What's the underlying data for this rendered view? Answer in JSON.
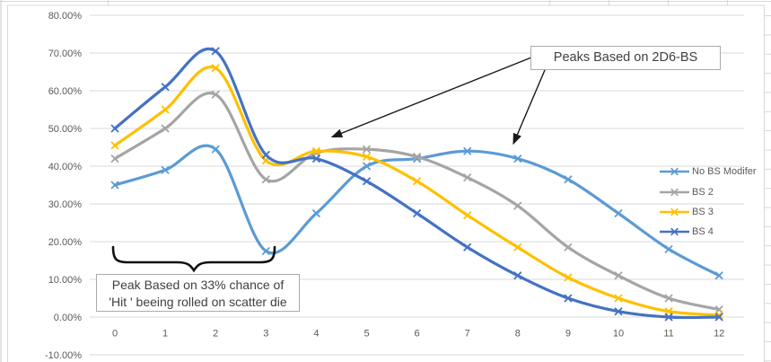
{
  "chart_data": {
    "type": "line",
    "title": "",
    "xlabel": "",
    "ylabel": "",
    "smooth": true,
    "marker": "x",
    "grid": "horizontal",
    "legend_position": "right",
    "ylim": [
      -10,
      80
    ],
    "y_ticks": [
      80,
      70,
      60,
      50,
      40,
      30,
      20,
      10,
      0,
      -10
    ],
    "y_tick_labels": [
      "80.00%",
      "70.00%",
      "60.00%",
      "50.00%",
      "40.00%",
      "30.00%",
      "20.00%",
      "10.00%",
      "0.00%",
      "-10.00%"
    ],
    "categories": [
      0,
      1,
      2,
      3,
      4,
      5,
      6,
      7,
      8,
      9,
      10,
      11,
      12
    ],
    "x_tick_labels": [
      "0",
      "1",
      "2",
      "3",
      "4",
      "5",
      "6",
      "7",
      "8",
      "9",
      "10",
      "11",
      "12"
    ],
    "value_unit": "percent",
    "series": [
      {
        "name": "No BS Modifer",
        "color": "#5B9BD5",
        "values": [
          35,
          39,
          44.5,
          17.5,
          27.5,
          40,
          42,
          44,
          42,
          36.5,
          27.5,
          18,
          11
        ]
      },
      {
        "name": "BS 2",
        "color": "#A5A5A5",
        "values": [
          42,
          50,
          59,
          36.5,
          43.5,
          44.5,
          42.5,
          37,
          29.5,
          18.5,
          11,
          5,
          2
        ]
      },
      {
        "name": "BS 3",
        "color": "#FFC000",
        "values": [
          45.5,
          55,
          66,
          41.5,
          44,
          42.5,
          36,
          27,
          18.5,
          10.5,
          5,
          1.5,
          0.5
        ]
      },
      {
        "name": "BS 4",
        "color": "#4472C4",
        "values": [
          50,
          61,
          70.5,
          43,
          42,
          36,
          27.5,
          18.5,
          11,
          5,
          1.5,
          0,
          0
        ]
      }
    ]
  },
  "annotations": {
    "peaks_box": {
      "text": "Peaks Based on 2D6-BS"
    },
    "scatter_box": {
      "line1": "Peak Based on 33% chance of",
      "line2": "'Hit ' beeing rolled on scatter die"
    }
  },
  "colors": {
    "gridline": "#D9D9D9",
    "axis_text": "#595959",
    "cell_border": "#D9D9D9",
    "annotation_ink": "#1a1a1a"
  }
}
